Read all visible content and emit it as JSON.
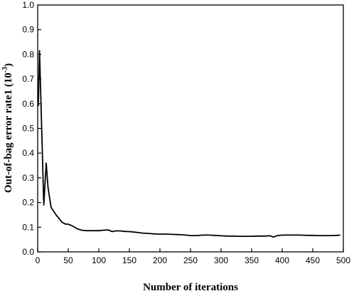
{
  "chart_data": {
    "type": "line",
    "title": "",
    "xlabel": "Number of iterations",
    "ylabel_main": "Out-of-bag error rate1 (10",
    "ylabel_sup": "-3",
    "ylabel_close": ")",
    "xlim": [
      0,
      500
    ],
    "ylim": [
      0,
      1.0
    ],
    "xticks": [
      0,
      50,
      100,
      150,
      200,
      250,
      300,
      350,
      400,
      450,
      500
    ],
    "yticks": [
      0.0,
      0.1,
      0.2,
      0.3,
      0.4,
      0.5,
      0.6,
      0.7,
      0.8,
      0.9,
      1.0
    ],
    "xtick_labels": [
      "0",
      "50",
      "100",
      "150",
      "200",
      "250",
      "300",
      "350",
      "400",
      "450",
      "500"
    ],
    "ytick_labels": [
      "0.0",
      "0.1",
      "0.2",
      "0.3",
      "0.4",
      "0.5",
      "0.6",
      "0.7",
      "0.8",
      "0.9",
      "1.0"
    ],
    "grid": false,
    "series": [
      {
        "color": "#000000",
        "x": [
          1,
          3,
          5,
          10,
          14,
          17,
          22,
          30,
          40,
          45,
          50,
          57,
          65,
          72,
          80,
          90,
          100,
          108,
          115,
          122,
          128,
          135,
          142,
          150,
          158,
          165,
          172,
          180,
          190,
          200,
          210,
          220,
          230,
          240,
          250,
          260,
          270,
          280,
          290,
          300,
          310,
          320,
          330,
          340,
          350,
          360,
          370,
          380,
          386,
          392,
          400,
          410,
          420,
          430,
          440,
          450,
          460,
          470,
          480,
          490,
          495
        ],
        "y": [
          0.59,
          0.815,
          0.64,
          0.19,
          0.36,
          0.26,
          0.18,
          0.15,
          0.12,
          0.113,
          0.112,
          0.105,
          0.093,
          0.088,
          0.086,
          0.086,
          0.086,
          0.088,
          0.089,
          0.082,
          0.085,
          0.085,
          0.083,
          0.082,
          0.08,
          0.078,
          0.076,
          0.075,
          0.073,
          0.072,
          0.072,
          0.071,
          0.07,
          0.069,
          0.066,
          0.066,
          0.068,
          0.068,
          0.067,
          0.065,
          0.064,
          0.064,
          0.063,
          0.063,
          0.063,
          0.064,
          0.064,
          0.065,
          0.06,
          0.066,
          0.068,
          0.068,
          0.068,
          0.068,
          0.067,
          0.067,
          0.066,
          0.066,
          0.066,
          0.067,
          0.068
        ]
      }
    ]
  }
}
